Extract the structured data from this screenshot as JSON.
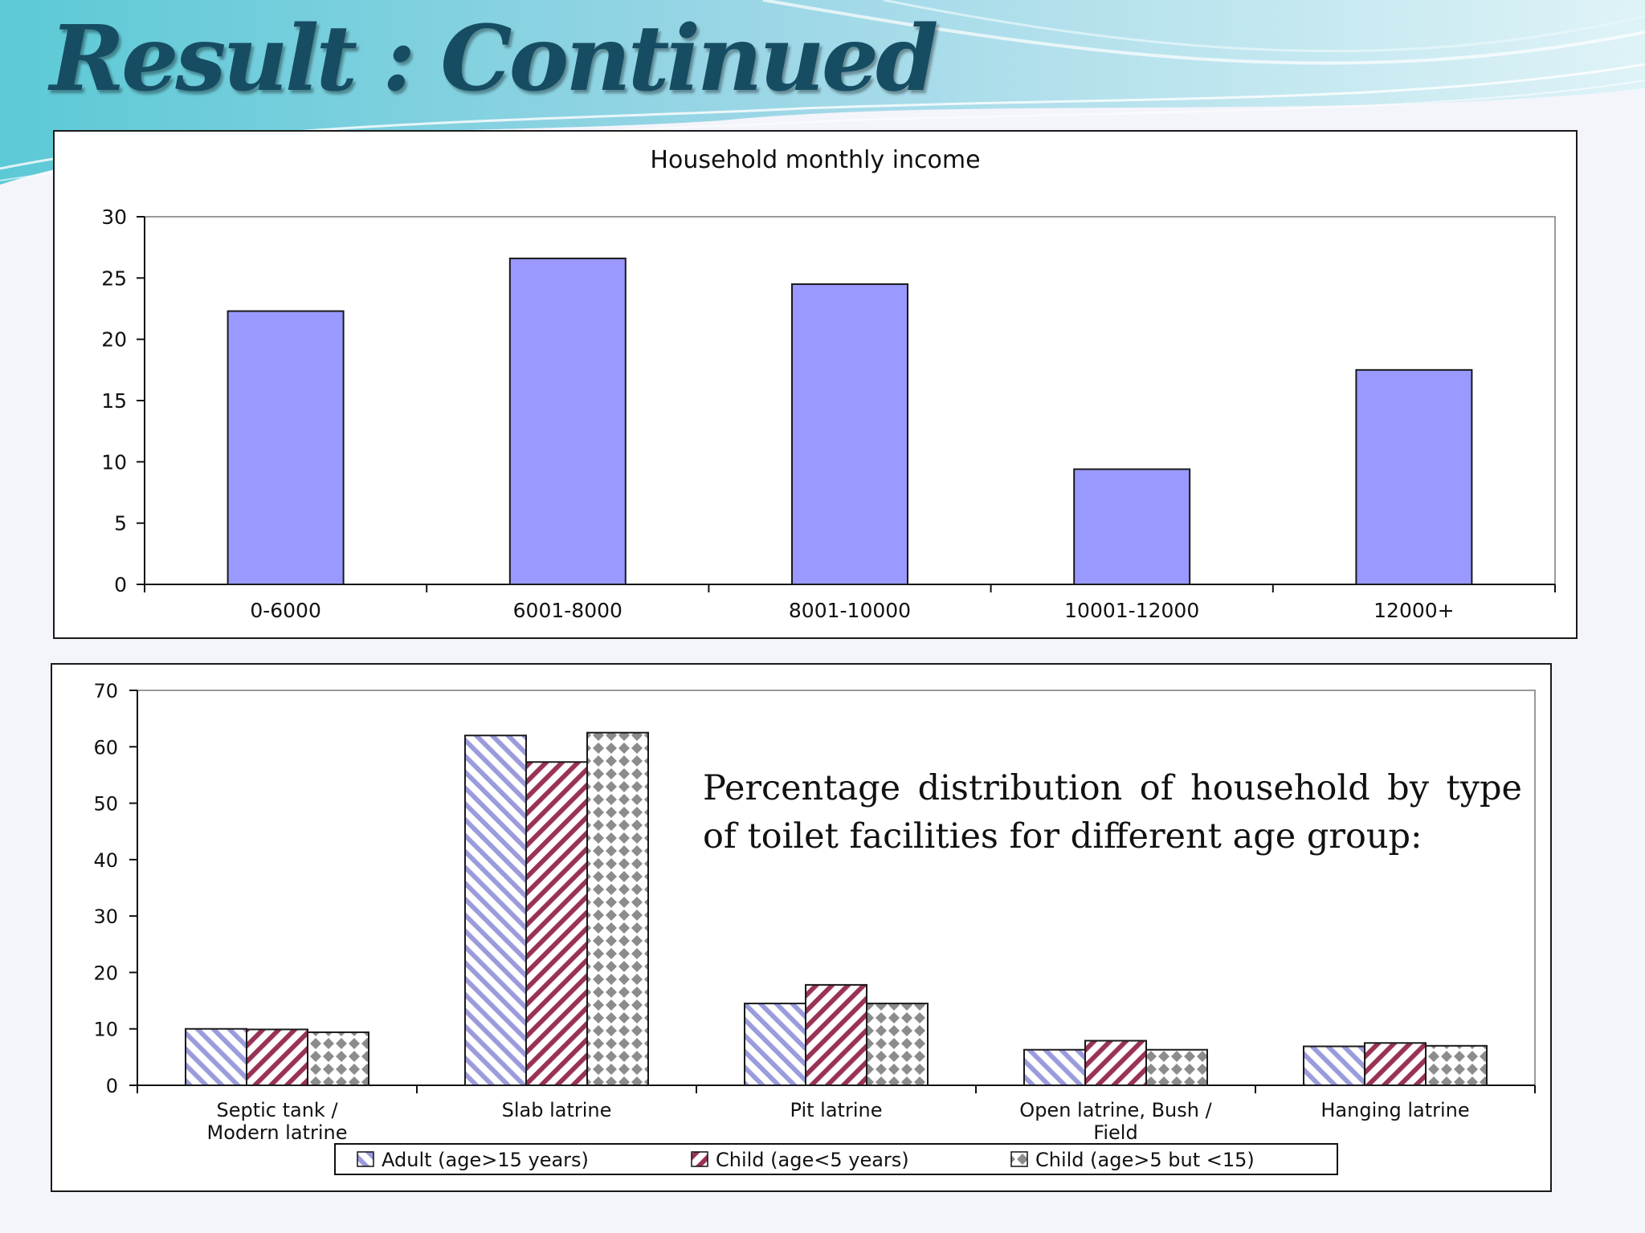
{
  "slide": {
    "title": "Result : Continued"
  },
  "chart_data": [
    {
      "type": "bar",
      "title": "Household monthly income",
      "categories": [
        "0-6000",
        "6001-8000",
        "8001-10000",
        "10001-12000",
        "12000+"
      ],
      "values": [
        22.3,
        26.6,
        24.5,
        9.4,
        17.5
      ],
      "ylim": [
        0,
        30
      ],
      "yticks": [
        0,
        5,
        10,
        15,
        20,
        25,
        30
      ],
      "grid": false,
      "colors": {
        "bar": "#9999ff",
        "stroke": "#1a1a1a"
      }
    },
    {
      "type": "bar",
      "caption": "Percentage distribution of household by type of toilet facilities for different age group:",
      "categories": [
        [
          "Septic tank /",
          "Modern latrine"
        ],
        [
          "Slab latrine"
        ],
        [
          "Pit latrine"
        ],
        [
          "Open latrine, Bush /",
          "Field"
        ],
        [
          "Hanging latrine"
        ]
      ],
      "series": [
        {
          "name": "Adult (age>15 years)",
          "values": [
            10.0,
            62.0,
            14.5,
            6.3,
            6.9
          ],
          "pattern": "diagonal-stripes",
          "color": "#9b9bdc"
        },
        {
          "name": "Child (age<5 years)",
          "values": [
            9.9,
            57.3,
            17.8,
            7.9,
            7.5
          ],
          "pattern": "diagonal-stripes",
          "color": "#993355"
        },
        {
          "name": "Child (age>5 but <15)",
          "values": [
            9.4,
            62.5,
            14.5,
            6.3,
            7.0
          ],
          "pattern": "diamonds",
          "color": "#8c8c8c"
        }
      ],
      "ylim": [
        0,
        70
      ],
      "yticks": [
        0,
        10,
        20,
        30,
        40,
        50,
        60,
        70
      ],
      "legend": "bottom",
      "grid": false
    }
  ]
}
